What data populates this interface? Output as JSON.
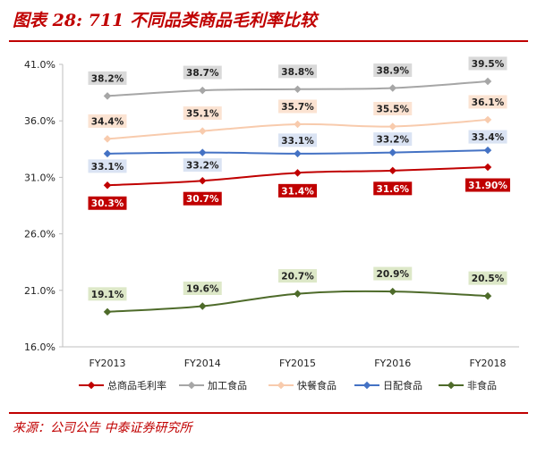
{
  "header": {
    "title": "图表 28: 711 不同品类商品毛利率比较"
  },
  "footer": {
    "source": "来源：公司公告  中泰证券研究所"
  },
  "chart_data": {
    "type": "line",
    "title": "图表 28: 711 不同品类商品毛利率比较",
    "xlabel": "",
    "ylabel": "",
    "categories": [
      "FY2013",
      "FY2014",
      "FY2015",
      "FY2016",
      "FY2018"
    ],
    "y_ticks": [
      "41.0%",
      "36.0%",
      "31.0%",
      "26.0%",
      "21.0%",
      "16.0%"
    ],
    "ylim": [
      16,
      41
    ],
    "grid": false,
    "legend_position": "bottom",
    "series": [
      {
        "name": "总商品毛利率",
        "color": "#c00000",
        "label_bg": "#c00000",
        "label_fg": "#ffffff",
        "values": [
          30.3,
          30.7,
          31.4,
          31.6,
          31.9
        ],
        "labels": [
          "30.3%",
          "30.7%",
          "31.4%",
          "31.6%",
          "31.90%"
        ],
        "label_pos": "below"
      },
      {
        "name": "加工食品",
        "color": "#a6a6a6",
        "label_bg": "#d9d9d9",
        "label_fg": "#222222",
        "values": [
          38.2,
          38.7,
          38.8,
          38.9,
          39.5
        ],
        "labels": [
          "38.2%",
          "38.7%",
          "38.8%",
          "38.9%",
          "39.5%"
        ],
        "label_pos": "above"
      },
      {
        "name": "快餐食品",
        "color": "#f8cbad",
        "label_bg": "#fbe3d2",
        "label_fg": "#222222",
        "values": [
          34.4,
          35.1,
          35.7,
          35.5,
          36.1
        ],
        "labels": [
          "34.4%",
          "35.1%",
          "35.7%",
          "35.5%",
          "36.1%"
        ],
        "label_pos": "above"
      },
      {
        "name": "日配食品",
        "color": "#4472c4",
        "label_bg": "#dae3f3",
        "label_fg": "#222222",
        "values": [
          33.1,
          33.2,
          33.1,
          33.2,
          33.4
        ],
        "labels": [
          "33.1%",
          "33.2%",
          "33.1%",
          "33.2%",
          "33.4%"
        ],
        "label_pos": "custom"
      },
      {
        "name": "非食品",
        "color": "#4e6b2a",
        "label_bg": "#dde8c8",
        "label_fg": "#222222",
        "values": [
          19.1,
          19.6,
          20.7,
          20.9,
          20.5
        ],
        "labels": [
          "19.1%",
          "19.6%",
          "20.7%",
          "20.9%",
          "20.5%"
        ],
        "label_pos": "above"
      }
    ]
  }
}
